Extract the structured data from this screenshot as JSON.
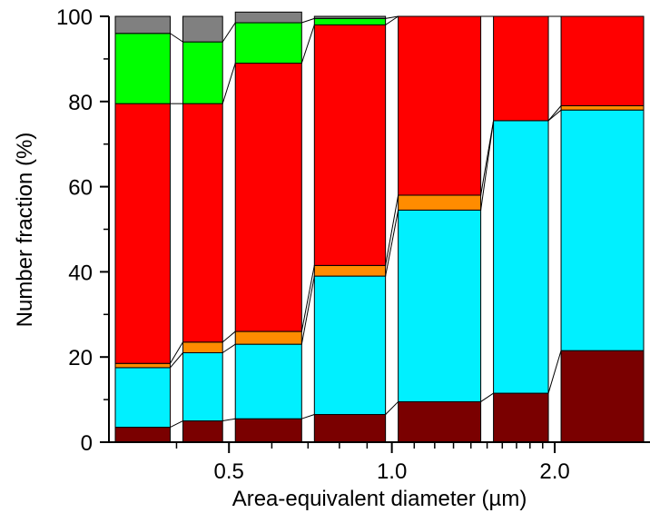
{
  "chart_data": {
    "type": "bar",
    "subtype": "stacked-percent",
    "xlabel": "Area-equivalent diameter (µm)",
    "ylabel": "Number fraction (%)",
    "x_scale": "log",
    "ylim": [
      0,
      100
    ],
    "yticks": [
      0,
      20,
      40,
      60,
      80,
      100
    ],
    "xticks": [
      {
        "label": "0.5",
        "value": 0.5
      },
      {
        "label": "1.0",
        "value": 1.0
      },
      {
        "label": "2.0",
        "value": 2.0
      }
    ],
    "grid": false,
    "legend": "none",
    "bins": [
      {
        "lower": 0.3,
        "upper": 0.4
      },
      {
        "lower": 0.4,
        "upper": 0.5
      },
      {
        "lower": 0.5,
        "upper": 0.7
      },
      {
        "lower": 0.7,
        "upper": 1.0
      },
      {
        "lower": 1.0,
        "upper": 1.5
      },
      {
        "lower": 1.5,
        "upper": 2.0
      },
      {
        "lower": 2.0,
        "upper": 3.0
      }
    ],
    "series": [
      {
        "color": "#7a0000",
        "values": [
          3.5,
          5.0,
          5.5,
          6.5,
          9.5,
          11.5,
          21.5
        ]
      },
      {
        "color": "#00f0ff",
        "values": [
          14.0,
          16.0,
          17.5,
          32.5,
          45.0,
          64.0,
          56.5
        ]
      },
      {
        "color": "#ff8c00",
        "values": [
          1.0,
          2.5,
          3.0,
          2.5,
          3.5,
          0.0,
          1.0
        ]
      },
      {
        "color": "#ff0000",
        "values": [
          61.0,
          56.0,
          63.0,
          56.5,
          42.0,
          24.5,
          21.0
        ]
      },
      {
        "color": "#00ff00",
        "values": [
          16.5,
          14.5,
          9.5,
          1.5,
          0.0,
          0.0,
          0.0
        ]
      },
      {
        "color": "#808080",
        "values": [
          4.0,
          6.0,
          2.5,
          0.5,
          0.0,
          0.0,
          0.0
        ]
      }
    ]
  }
}
